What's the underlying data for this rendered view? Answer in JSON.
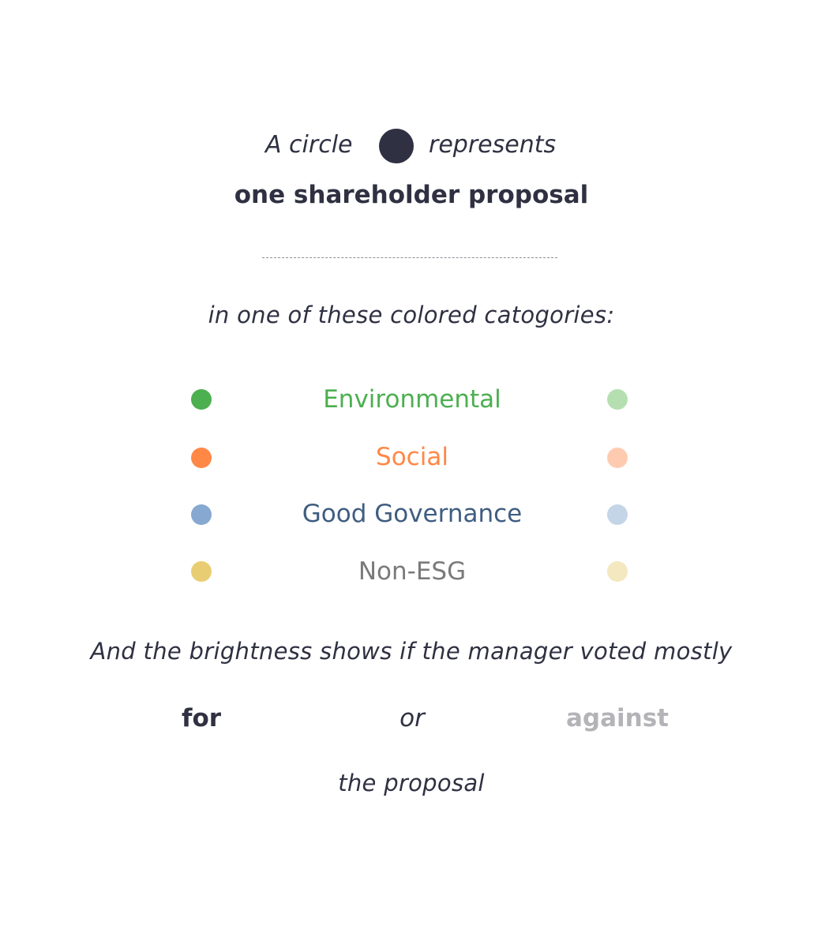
{
  "intro": {
    "prefix": "A circle",
    "suffix": "represents",
    "subject": "one shareholder proposal",
    "symbol_color": "#2f3142"
  },
  "categories_intro": "in one of these colored catogories:",
  "categories": [
    {
      "label": "Environmental",
      "text_color": "#4caf50",
      "for_color": "#4caf50",
      "against_color": "#b6dfb1"
    },
    {
      "label": "Social",
      "text_color": "#ff8847",
      "for_color": "#ff8847",
      "against_color": "#ffcbb0"
    },
    {
      "label": "Good Governance",
      "text_color": "#3f5d80",
      "for_color": "#87a8d0",
      "against_color": "#c5d5e8"
    },
    {
      "label": "Non-ESG",
      "text_color": "#7a7a7a",
      "for_color": "#e8cd72",
      "against_color": "#f3e8bf"
    }
  ],
  "brightness_text": "And the brightness shows if the manager voted mostly",
  "vote": {
    "for_label": "for",
    "or_label": "or",
    "against_label": "against",
    "for_color": "#2f3142",
    "against_color": "#b3b3b8"
  },
  "closing": "the proposal"
}
